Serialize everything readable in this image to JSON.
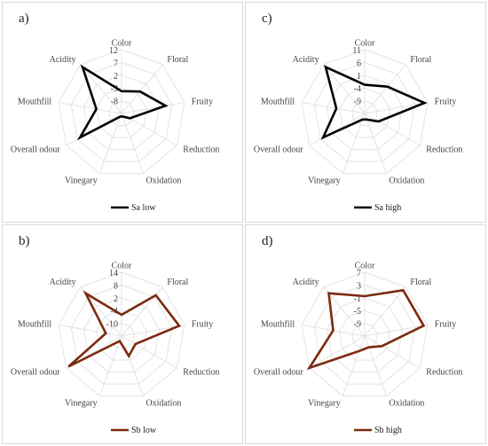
{
  "chart_data": [
    {
      "type": "radar",
      "panel_label": "a)",
      "axes": [
        "Color",
        "Floral",
        "Fruity",
        "Reduction",
        "Oxidation",
        "Vinegary",
        "Overall odour",
        "Mouthfill",
        "Acidity"
      ],
      "ticks": [
        "12",
        "7",
        "2",
        "-3",
        "-8"
      ],
      "range": [
        -8,
        12
      ],
      "series": [
        {
          "name": "Sa low",
          "color": "#000000",
          "values": [
            -1,
            1,
            6,
            -5,
            -7,
            -7,
            7,
            0,
            11
          ]
        }
      ],
      "legend_position": "bottom"
    },
    {
      "type": "radar",
      "panel_label": "c)",
      "axes": [
        "Color",
        "Floral",
        "Fruity",
        "Reduction",
        "Oxidation",
        "Vinegary",
        "Overall odour",
        "Mouthfill",
        "Acidity"
      ],
      "ticks": [
        "11",
        "6",
        "1",
        "-4",
        "-9"
      ],
      "range": [
        -9,
        11
      ],
      "series": [
        {
          "name": "Sa high",
          "color": "#000000",
          "values": [
            0,
            2,
            10,
            -4,
            -7,
            -7,
            6,
            0,
            10
          ]
        }
      ],
      "legend_position": "bottom"
    },
    {
      "type": "radar",
      "panel_label": "b)",
      "axes": [
        "Color",
        "Floral",
        "Fruity",
        "Reduction",
        "Oxidation",
        "Vinegary",
        "Overall odour",
        "Mouthfill",
        "Acidity"
      ],
      "ticks": [
        "14",
        "8",
        "2",
        "-4",
        "-10"
      ],
      "range": [
        -10,
        14
      ],
      "series": [
        {
          "name": "Sb low",
          "color": "#7b2a10",
          "values": [
            -2,
            10,
            12,
            -4,
            -2,
            -8,
            13,
            -4,
            11
          ]
        }
      ],
      "legend_position": "bottom"
    },
    {
      "type": "radar",
      "panel_label": "d)",
      "axes": [
        "Color",
        "Floral",
        "Fruity",
        "Reduction",
        "Oxidation",
        "Vinegary",
        "Overall odour",
        "Mouthfill",
        "Acidity"
      ],
      "ticks": [
        "7",
        "3",
        "-1",
        "-5",
        "-9"
      ],
      "range": [
        -9,
        7
      ],
      "series": [
        {
          "name": "Sb high",
          "color": "#7b2a10",
          "values": [
            1,
            6,
            6,
            -4,
            -6,
            -5,
            7,
            -1,
            5
          ]
        }
      ],
      "legend_position": "bottom"
    }
  ]
}
